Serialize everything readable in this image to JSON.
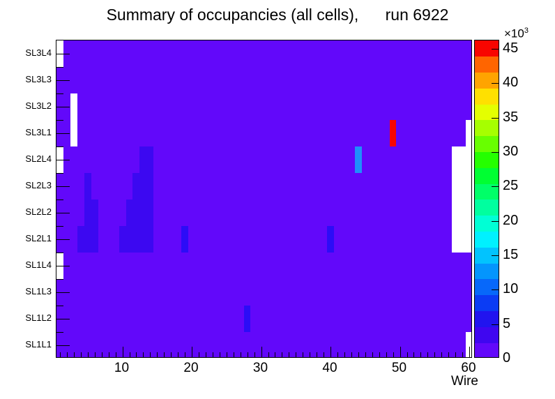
{
  "title": "Summary of occupancies (all cells),      run 6922",
  "axes": {
    "x_label": "Wire",
    "x_ticks": [
      10,
      20,
      30,
      40,
      50,
      60
    ],
    "x_minor_step": 1,
    "y_labels_top_to_bottom": [
      "SL3L4",
      "SL3L3",
      "SL3L2",
      "SL3L1",
      "SL2L4",
      "SL2L3",
      "SL2L2",
      "SL2L1",
      "SL1L4",
      "SL1L3",
      "SL1L2",
      "SL1L1"
    ]
  },
  "colorbar": {
    "ticks": [
      0,
      5,
      10,
      15,
      20,
      25,
      30,
      35,
      40,
      45
    ],
    "scale_max": 46200,
    "exponent_mantissa": "×10",
    "exponent_power": "3",
    "palette_bottom_to_top": [
      "#6208fa",
      "#3f06f0",
      "#2114ef",
      "#0b3cf4",
      "#0768fa",
      "#0495fd",
      "#02c3fe",
      "#00f1ff",
      "#00ffd5",
      "#00ff9f",
      "#00ff68",
      "#00ff32",
      "#25ff00",
      "#68ff00",
      "#a6ff00",
      "#e4ff00",
      "#ffe000",
      "#ffa400",
      "#ff6500",
      "#f80500"
    ]
  },
  "chart_data": {
    "type": "heatmap",
    "title": "Summary of occupancies (all cells), run 6922",
    "x": {
      "label": "Wire",
      "min": 0.5,
      "max": 60.5,
      "n_bins": 60,
      "ticks": [
        10,
        20,
        30,
        40,
        50,
        60
      ]
    },
    "y": {
      "categories_bottom_to_top": [
        "SL1L1",
        "SL1L2",
        "SL1L3",
        "SL1L4",
        "SL2L1",
        "SL2L2",
        "SL2L3",
        "SL2L4",
        "SL3L1",
        "SL3L2",
        "SL3L3",
        "SL3L4"
      ]
    },
    "z": {
      "ticks_thousands": [
        0,
        5,
        10,
        15,
        20,
        25,
        30,
        35,
        40,
        45
      ],
      "max": 46200
    },
    "background_value_approx": 1500,
    "background_color": "#6208fa",
    "highlight_cells": [
      {
        "layer": "SL2L4",
        "wire_start": 13,
        "wire_end": 14,
        "value_approx": 3500,
        "color": "#3c08f1"
      },
      {
        "layer": "SL2L3",
        "wire_start": 12,
        "wire_end": 14,
        "value_approx": 3500,
        "color": "#3c08f1"
      },
      {
        "layer": "SL2L2",
        "wire_start": 11,
        "wire_end": 14,
        "value_approx": 3500,
        "color": "#3c08f1"
      },
      {
        "layer": "SL2L1",
        "wire_start": 10,
        "wire_end": 14,
        "value_approx": 3500,
        "color": "#3c08f1"
      },
      {
        "layer": "SL2L3",
        "wire_start": 5,
        "wire_end": 5,
        "value_approx": 3500,
        "color": "#3c08f1"
      },
      {
        "layer": "SL2L2",
        "wire_start": 5,
        "wire_end": 6,
        "value_approx": 3500,
        "color": "#3c08f1"
      },
      {
        "layer": "SL2L1",
        "wire_start": 4,
        "wire_end": 6,
        "value_approx": 3500,
        "color": "#3c08f1"
      },
      {
        "layer": "SL2L1",
        "wire_start": 19,
        "wire_end": 19,
        "value_approx": 5000,
        "color": "#2c0cf7"
      },
      {
        "layer": "SL2L1",
        "wire_start": 40,
        "wire_end": 40,
        "value_approx": 5000,
        "color": "#2c0cf7"
      },
      {
        "layer": "SL1L2",
        "wire_start": 28,
        "wire_end": 28,
        "value_approx": 5000,
        "color": "#2c0cf7"
      },
      {
        "layer": "SL2L4",
        "wire_start": 44,
        "wire_end": 44,
        "value_approx": 12500,
        "color": "#1f8ffb"
      },
      {
        "layer": "SL3L1",
        "wire_start": 49,
        "wire_end": 49,
        "value_approx": 45000,
        "color": "#f80500"
      }
    ],
    "empty_cells": [
      {
        "layer": "SL3L4",
        "wire_start": 1,
        "wire_end": 1
      },
      {
        "layer": "SL2L4",
        "wire_start": 1,
        "wire_end": 1
      },
      {
        "layer": "SL1L4",
        "wire_start": 1,
        "wire_end": 1
      },
      {
        "layer": "SL3L2",
        "wire_start": 3,
        "wire_end": 3
      },
      {
        "layer": "SL3L1",
        "wire_start": 3,
        "wire_end": 3
      },
      {
        "layer": "SL3L1",
        "wire_start": 60,
        "wire_end": 60
      },
      {
        "layer": "SL2L4",
        "wire_start": 58,
        "wire_end": 60
      },
      {
        "layer": "SL2L3",
        "wire_start": 58,
        "wire_end": 60
      },
      {
        "layer": "SL2L2",
        "wire_start": 58,
        "wire_end": 60
      },
      {
        "layer": "SL2L1",
        "wire_start": 58,
        "wire_end": 60
      },
      {
        "layer": "SL1L1",
        "wire_start": 60,
        "wire_end": 60
      }
    ]
  }
}
